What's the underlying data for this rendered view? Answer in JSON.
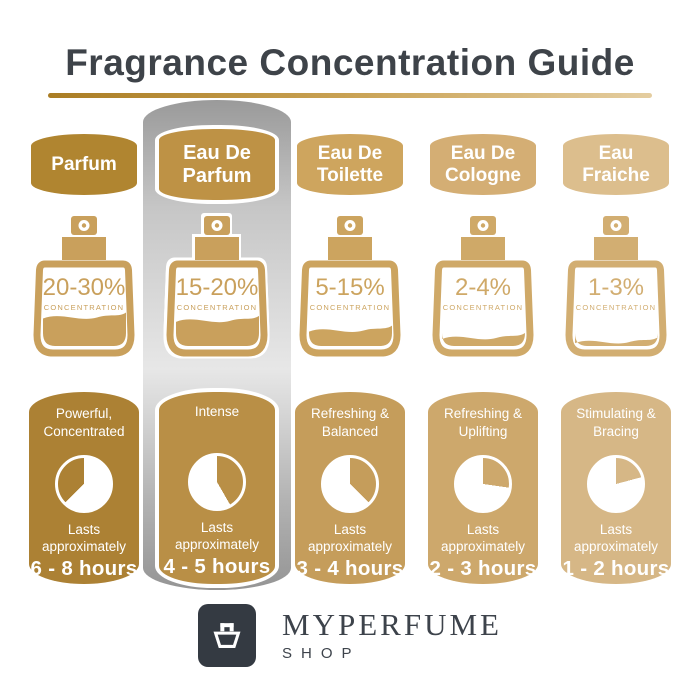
{
  "title": "Fragrance Concentration Guide",
  "accent": {
    "underline_left": "#AA7D24",
    "underline_mid": "#C9A254",
    "underline_right": "#E4CDA0"
  },
  "highlight": {
    "top": "#9A9A9A",
    "upper": "#C6C6C6",
    "mid": "#E7E7E7",
    "lower": "#B2B2B2",
    "bottom": "#959595"
  },
  "logo": {
    "brand": "MYPERFUME",
    "sub": "SHOP",
    "icon": "perfume-bottle-icon",
    "box_color": "#343A42",
    "text_color": "#3D434B"
  },
  "columns": [
    {
      "name": "Parfum",
      "concentration": "20-30%",
      "concentration_label": "CONCENTRATION",
      "fill_percent": 42,
      "description": "Powerful, Concentrated",
      "lasts": "Lasts approximately",
      "duration": "6 - 8 hours",
      "badge_color": "#B08530",
      "card_color": "#AC8134",
      "bottle_color": "#C9A05C",
      "clock": {
        "gold_start_deg": 225,
        "gold_end_deg": 360
      },
      "highlighted": false
    },
    {
      "name": "Eau De Parfum",
      "concentration": "15-20%",
      "concentration_label": "CONCENTRATION",
      "fill_percent": 38,
      "description": "Intense",
      "lasts": "Lasts approximately",
      "duration": "4 - 5 hours",
      "badge_color": "#BE9245",
      "card_color": "#B98F46",
      "bottle_color": "#C9A05C",
      "clock": {
        "gold_start_deg": 0,
        "gold_end_deg": 150
      },
      "highlighted": true
    },
    {
      "name": "Eau De Toilette",
      "concentration": "5-15%",
      "concentration_label": "CONCENTRATION",
      "fill_percent": 26,
      "description": "Refreshing & Balanced",
      "lasts": "Lasts approximately",
      "duration": "3 - 4 hours",
      "badge_color": "#CEA55E",
      "card_color": "#C59D5B",
      "bottle_color": "#CCA45F",
      "clock": {
        "gold_start_deg": 0,
        "gold_end_deg": 135
      },
      "highlighted": false
    },
    {
      "name": "Eau De Cologne",
      "concentration": "2-4%",
      "concentration_label": "CONCENTRATION",
      "fill_percent": 17,
      "description": "Refreshing & Uplifting",
      "lasts": "Lasts approximately",
      "duration": "2 - 3 hours",
      "badge_color": "#D4AE74",
      "card_color": "#CDA86C",
      "bottle_color": "#CFA968",
      "clock": {
        "gold_start_deg": 0,
        "gold_end_deg": 98
      },
      "highlighted": false
    },
    {
      "name": "Eau Fraiche",
      "concentration": "1-3%",
      "concentration_label": "CONCENTRATION",
      "fill_percent": 12,
      "description": "Stimulating & Bracing",
      "lasts": "Lasts approximately",
      "duration": "1 - 2 hours",
      "badge_color": "#DCBE8D",
      "card_color": "#D6B786",
      "bottle_color": "#D2AE72",
      "clock": {
        "gold_start_deg": 0,
        "gold_end_deg": 75
      },
      "highlighted": false
    }
  ]
}
